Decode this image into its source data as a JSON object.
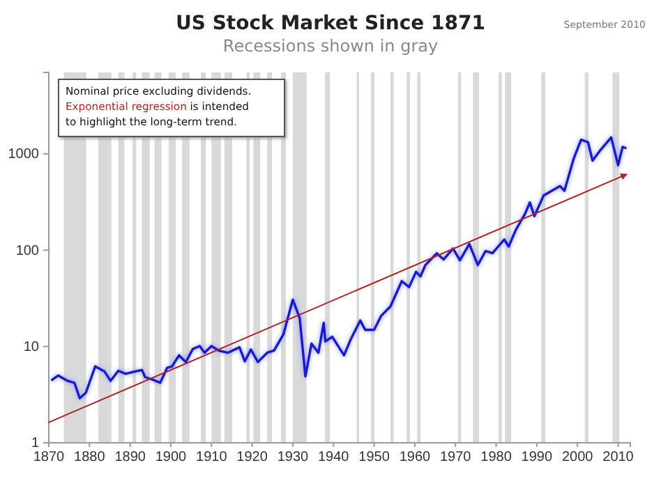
{
  "chart_data": {
    "type": "line",
    "title": "US Stock Market Since 1871",
    "subtitle": "Recessions shown in gray",
    "annotations": [
      "September 2010",
      "Nominal price excluding dividends.",
      "is intended",
      "to highlight the long-term  trend."
    ],
    "log": true,
    "grid": false,
    "legend": "top left",
    "xlim": [
      1870,
      2013
    ],
    "xticks": [
      1870,
      1880,
      1890,
      1900,
      1910,
      1920,
      1930,
      1940,
      1950,
      1960,
      1970,
      1980,
      1990,
      2000,
      2010
    ],
    "ylim": [
      1,
      7000
    ],
    "yticks": [
      1,
      10,
      100,
      1000
    ],
    "bands": [
      {
        "axis": "x",
        "from": 1873.7,
        "to": 1879.2,
        "color": "#d9d9d9"
      },
      {
        "axis": "x",
        "from": 1882.2,
        "to": 1885.4,
        "color": "#d9d9d9"
      },
      {
        "axis": "x",
        "from": 1887.1,
        "to": 1888.6,
        "color": "#d9d9d9"
      },
      {
        "axis": "x",
        "from": 1890.6,
        "to": 1891.5,
        "color": "#d9d9d9"
      },
      {
        "axis": "x",
        "from": 1892.9,
        "to": 1894.8,
        "color": "#d9d9d9"
      },
      {
        "axis": "x",
        "from": 1896,
        "to": 1897.7,
        "color": "#d9d9d9"
      },
      {
        "axis": "x",
        "from": 1899.5,
        "to": 1901.2,
        "color": "#d9d9d9"
      },
      {
        "axis": "x",
        "from": 1902.8,
        "to": 1904.6,
        "color": "#d9d9d9"
      },
      {
        "axis": "x",
        "from": 1907.4,
        "to": 1908.6,
        "color": "#d9d9d9"
      },
      {
        "axis": "x",
        "from": 1910,
        "to": 1912.3,
        "color": "#d9d9d9"
      },
      {
        "axis": "x",
        "from": 1913.2,
        "to": 1915.1,
        "color": "#d9d9d9"
      },
      {
        "axis": "x",
        "from": 1918.6,
        "to": 1919.4,
        "color": "#d9d9d9"
      },
      {
        "axis": "x",
        "from": 1920.3,
        "to": 1922,
        "color": "#d9d9d9"
      },
      {
        "axis": "x",
        "from": 1923.7,
        "to": 1924.9,
        "color": "#d9d9d9"
      },
      {
        "axis": "x",
        "from": 1927.1,
        "to": 1928.3,
        "color": "#d9d9d9"
      },
      {
        "axis": "x",
        "from": 1930,
        "to": 1933.4,
        "color": "#d9d9d9"
      },
      {
        "axis": "x",
        "from": 1937.9,
        "to": 1939.1,
        "color": "#d9d9d9"
      },
      {
        "axis": "x",
        "from": 1945.7,
        "to": 1946.3,
        "color": "#d9d9d9"
      },
      {
        "axis": "x",
        "from": 1949.2,
        "to": 1950.1,
        "color": "#d9d9d9"
      },
      {
        "axis": "x",
        "from": 1954,
        "to": 1954.8,
        "color": "#d9d9d9"
      },
      {
        "axis": "x",
        "from": 1958,
        "to": 1958.8,
        "color": "#d9d9d9"
      },
      {
        "axis": "x",
        "from": 1960.6,
        "to": 1961.4,
        "color": "#d9d9d9"
      },
      {
        "axis": "x",
        "from": 1970.6,
        "to": 1971.4,
        "color": "#d9d9d9"
      },
      {
        "axis": "x",
        "from": 1974.3,
        "to": 1975.8,
        "color": "#d9d9d9"
      },
      {
        "axis": "x",
        "from": 1980.6,
        "to": 1981.4,
        "color": "#d9d9d9"
      },
      {
        "axis": "x",
        "from": 1982.2,
        "to": 1983.7,
        "color": "#d9d9d9"
      },
      {
        "axis": "x",
        "from": 1991.1,
        "to": 1992.1,
        "color": "#d9d9d9"
      },
      {
        "axis": "x",
        "from": 2001.8,
        "to": 2002.7,
        "color": "#d9d9d9"
      },
      {
        "axis": "x",
        "from": 2008.6,
        "to": 2010.3,
        "color": "#d9d9d9"
      }
    ],
    "series": [
      {
        "color": "#1a1acc",
        "x": [
          1870.8,
          1872.3,
          1873.4,
          1874.6,
          1876.3,
          1877.6,
          1879.1,
          1881.4,
          1883.7,
          1885.2,
          1887.1,
          1888.9,
          1891.2,
          1892.9,
          1893.7,
          1895.7,
          1897.4,
          1899.1,
          1900.3,
          1902,
          1903.7,
          1905.4,
          1907.1,
          1908.3,
          1910,
          1911.7,
          1914,
          1916.9,
          1918.2,
          1919.7,
          1921.4,
          1923.7,
          1925.4,
          1927.7,
          1930,
          1931.7,
          1933.1,
          1934.6,
          1936.3,
          1937.6,
          1938,
          1939.7,
          1942.6,
          1944.3,
          1946.6,
          1947.8,
          1950,
          1951.7,
          1954,
          1956.8,
          1958.6,
          1960.3,
          1961.4,
          1962.6,
          1965.4,
          1967.1,
          1969.4,
          1971.1,
          1973.4,
          1975.5,
          1977.4,
          1979.1,
          1982,
          1983.1,
          1984.8,
          1987.1,
          1988.3,
          1989.4,
          1991.7,
          1995.7,
          1996.8,
          1999.1,
          2000.9,
          2002.6,
          2003.7,
          2005.4,
          2008.3,
          2010,
          2011.1,
          2011.8
        ],
        "values": [
          4.5,
          5.0,
          4.7,
          4.4,
          4.2,
          2.9,
          3.3,
          6.2,
          5.5,
          4.4,
          5.6,
          5.2,
          5.5,
          5.7,
          4.8,
          4.5,
          4.2,
          6.0,
          6.2,
          8.1,
          6.9,
          9.4,
          10.1,
          8.6,
          10.1,
          9.1,
          8.6,
          9.8,
          7.0,
          9.3,
          6.9,
          8.6,
          9.1,
          13.4,
          30.6,
          19.7,
          4.9,
          10.7,
          8.6,
          17.6,
          11.3,
          12.6,
          8.1,
          12,
          18.6,
          14.9,
          14.9,
          20.7,
          26,
          47.7,
          41.3,
          59.6,
          53.4,
          70,
          92.7,
          80,
          104,
          78.5,
          116,
          70,
          98,
          93,
          129,
          109,
          161,
          238,
          313,
          225,
          370,
          463,
          413,
          900,
          1400,
          1320,
          850,
          1060,
          1480,
          760,
          1180,
          1150
        ]
      },
      {
        "name": "Exponential regression",
        "color": "#b22222",
        "x": [
          1870,
          2012
        ],
        "values": [
          1.63,
          610
        ]
      }
    ]
  }
}
